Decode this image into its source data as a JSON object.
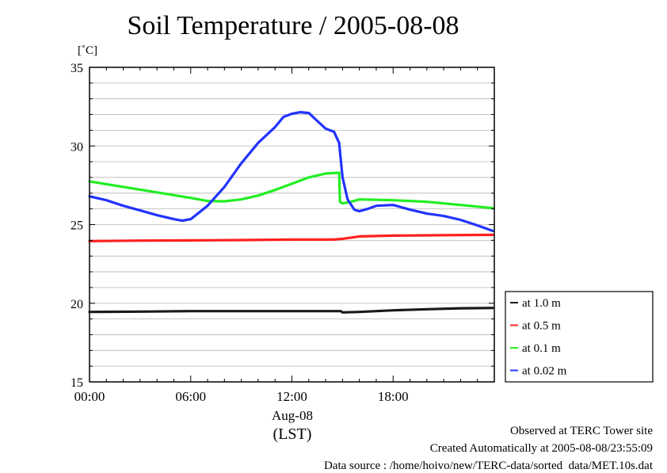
{
  "chart_data": {
    "type": "line",
    "title": "Soil Temperature / 2005-08-08",
    "ylabel": "[˚C]",
    "xlabel": "(LST)",
    "x_date_label": "Aug-08",
    "ylim": [
      15,
      35
    ],
    "yticks": [
      15,
      20,
      25,
      30,
      35
    ],
    "xlim": [
      0,
      24
    ],
    "xticks": [
      0,
      6,
      12,
      18
    ],
    "xtick_labels": [
      "00:00",
      "06:00",
      "12:00",
      "18:00"
    ],
    "grid": true,
    "legend_position": "bottom-right outside",
    "series": [
      {
        "name": "at 1.0 m",
        "color": "#1a1a1a",
        "x": [
          0,
          3,
          6,
          9,
          12,
          14.9,
          15,
          16,
          18,
          20,
          22,
          23.9
        ],
        "y": [
          19.45,
          19.47,
          19.5,
          19.5,
          19.5,
          19.5,
          19.42,
          19.45,
          19.55,
          19.62,
          19.68,
          19.7
        ]
      },
      {
        "name": "at 0.5 m",
        "color": "#ff2020",
        "x": [
          0,
          3,
          6,
          9,
          12,
          14.5,
          15,
          16,
          18,
          20,
          23.9
        ],
        "y": [
          23.95,
          23.98,
          24.0,
          24.02,
          24.05,
          24.05,
          24.1,
          24.25,
          24.3,
          24.32,
          24.35
        ]
      },
      {
        "name": "at 0.1 m",
        "color": "#22ee22",
        "x": [
          0,
          2,
          4,
          6,
          7,
          8,
          9,
          10,
          11,
          12,
          13,
          14,
          14.8,
          14.85,
          15,
          15.5,
          16,
          18,
          20,
          22,
          23.9
        ],
        "y": [
          27.75,
          27.4,
          27.05,
          26.7,
          26.5,
          26.48,
          26.6,
          26.85,
          27.2,
          27.6,
          28.0,
          28.25,
          28.3,
          26.45,
          26.35,
          26.45,
          26.6,
          26.55,
          26.45,
          26.25,
          26.05
        ]
      },
      {
        "name": "at 0.02 m",
        "color": "#2233ff",
        "x": [
          0,
          1,
          2,
          3,
          4,
          5,
          5.5,
          6,
          7,
          8,
          9,
          10,
          11,
          11.5,
          12,
          12.5,
          13,
          13.5,
          14,
          14.5,
          14.8,
          15,
          15.3,
          15.7,
          16,
          16.5,
          17,
          18,
          19,
          20,
          21,
          22,
          23,
          23.9
        ],
        "y": [
          26.8,
          26.55,
          26.2,
          25.9,
          25.6,
          25.35,
          25.25,
          25.35,
          26.2,
          27.4,
          28.9,
          30.2,
          31.2,
          31.85,
          32.05,
          32.15,
          32.1,
          31.6,
          31.1,
          30.9,
          30.2,
          28.0,
          26.6,
          25.95,
          25.85,
          26.0,
          26.2,
          26.25,
          25.95,
          25.7,
          25.55,
          25.3,
          24.95,
          24.6
        ]
      }
    ]
  },
  "footer": {
    "observed": "Observed at TERC Tower site",
    "created": "Created Automatically at 2005-08-08/23:55:09",
    "source": "Data source : /home/hoivo/new/TERC-data/sorted  data/MET.10s.dat"
  }
}
